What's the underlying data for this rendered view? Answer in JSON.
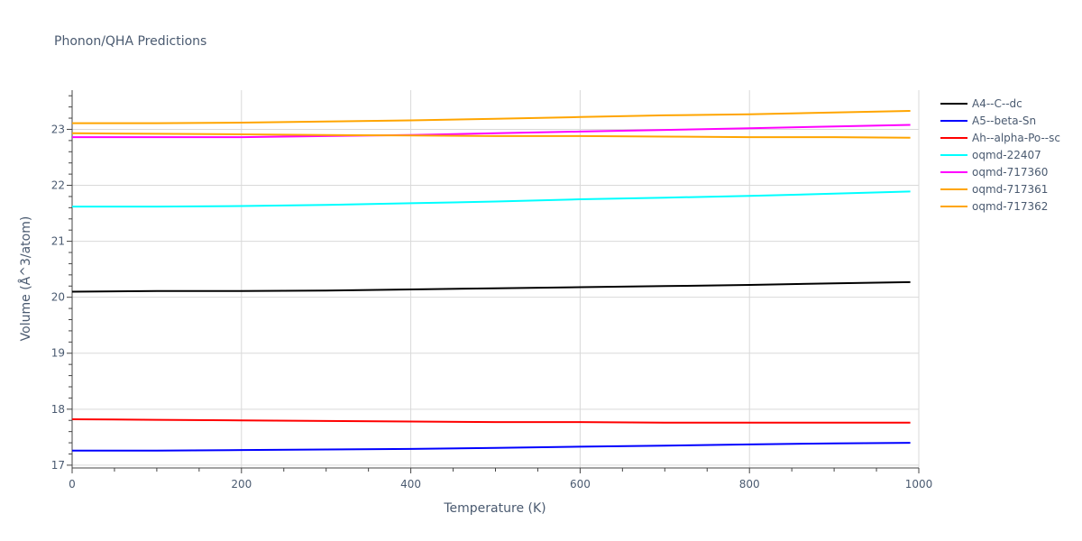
{
  "chart_data": {
    "type": "line",
    "title": "Phonon/QHA Predictions",
    "xlabel": "Temperature (K)",
    "ylabel": "Volume (Å^3/atom)",
    "xlim": [
      0,
      1000
    ],
    "ylim": [
      16.95,
      23.7
    ],
    "xticks": [
      0,
      200,
      400,
      600,
      800,
      1000
    ],
    "yticks": [
      17,
      18,
      19,
      20,
      21,
      22,
      23
    ],
    "grid": true,
    "legend_position": "top-right",
    "series": [
      {
        "name": "A4--C--dc",
        "color": "#000000",
        "x": [
          0,
          100,
          200,
          300,
          400,
          500,
          600,
          700,
          800,
          900,
          990
        ],
        "y": [
          20.1,
          20.11,
          20.11,
          20.12,
          20.14,
          20.16,
          20.18,
          20.2,
          20.22,
          20.25,
          20.27
        ]
      },
      {
        "name": "A5--beta-Sn",
        "color": "#0000ff",
        "x": [
          0,
          100,
          200,
          300,
          400,
          500,
          600,
          700,
          800,
          900,
          990
        ],
        "y": [
          17.26,
          17.26,
          17.27,
          17.28,
          17.29,
          17.31,
          17.33,
          17.35,
          17.37,
          17.39,
          17.4
        ]
      },
      {
        "name": "Ah--alpha-Po--sc",
        "color": "#ff0000",
        "x": [
          0,
          100,
          200,
          300,
          400,
          500,
          600,
          700,
          800,
          900,
          990
        ],
        "y": [
          17.82,
          17.81,
          17.8,
          17.79,
          17.78,
          17.77,
          17.77,
          17.76,
          17.76,
          17.76,
          17.76
        ]
      },
      {
        "name": "oqmd-22407",
        "color": "#00ffff",
        "x": [
          0,
          100,
          200,
          300,
          400,
          500,
          600,
          700,
          800,
          900,
          990
        ],
        "y": [
          21.62,
          21.62,
          21.63,
          21.65,
          21.68,
          21.71,
          21.75,
          21.78,
          21.81,
          21.85,
          21.89
        ]
      },
      {
        "name": "oqmd-717360",
        "color": "#ff00ff",
        "x": [
          0,
          100,
          200,
          300,
          400,
          500,
          600,
          700,
          800,
          900,
          990
        ],
        "y": [
          22.86,
          22.86,
          22.86,
          22.88,
          22.9,
          22.93,
          22.96,
          22.99,
          23.02,
          23.05,
          23.08
        ]
      },
      {
        "name": "oqmd-717361",
        "color": "#ffa500",
        "x": [
          0,
          100,
          200,
          300,
          400,
          500,
          600,
          700,
          800,
          900,
          990
        ],
        "y": [
          22.93,
          22.92,
          22.91,
          22.9,
          22.89,
          22.88,
          22.88,
          22.87,
          22.86,
          22.86,
          22.85
        ]
      },
      {
        "name": "oqmd-717362",
        "color": "#ffa500",
        "x": [
          0,
          100,
          200,
          300,
          400,
          500,
          600,
          700,
          800,
          900,
          990
        ],
        "y": [
          23.11,
          23.11,
          23.12,
          23.14,
          23.16,
          23.19,
          23.22,
          23.25,
          23.27,
          23.3,
          23.33
        ]
      }
    ]
  }
}
